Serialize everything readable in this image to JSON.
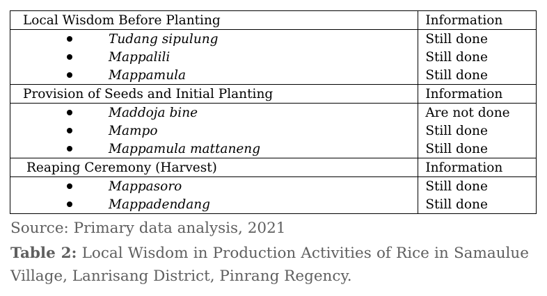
{
  "sections": [
    {
      "title": "Local Wisdom Before Planting",
      "info_header": "Information",
      "items": [
        {
          "name": "Tudang sipulung",
          "status": "Still done"
        },
        {
          "name": "Mappalili",
          "status": "Still done"
        },
        {
          "name": "Mappamula",
          "status": "Still done"
        }
      ]
    },
    {
      "title": "Provision of Seeds and Initial Planting",
      "info_header": "Information",
      "items": [
        {
          "name": "Maddoja bine",
          "status": "Are not done"
        },
        {
          "name": "Mampo",
          "status": "Still done"
        },
        {
          "name": "Mappamula mattaneng",
          "status": "Still done"
        }
      ]
    },
    {
      "title": "Reaping Ceremony (Harvest)",
      "info_header": "Information",
      "items": [
        {
          "name": "Mappasoro",
          "status": "Still done"
        },
        {
          "name": "Mappadendang",
          "status": "Still done"
        }
      ]
    }
  ],
  "source": "Source: Primary data analysis, 2021",
  "caption": {
    "label": "Table 2:",
    "text": " Local Wisdom in Production Activities of Rice in Samaulue Village, Lanrisang District, Pinrang Regency."
  }
}
